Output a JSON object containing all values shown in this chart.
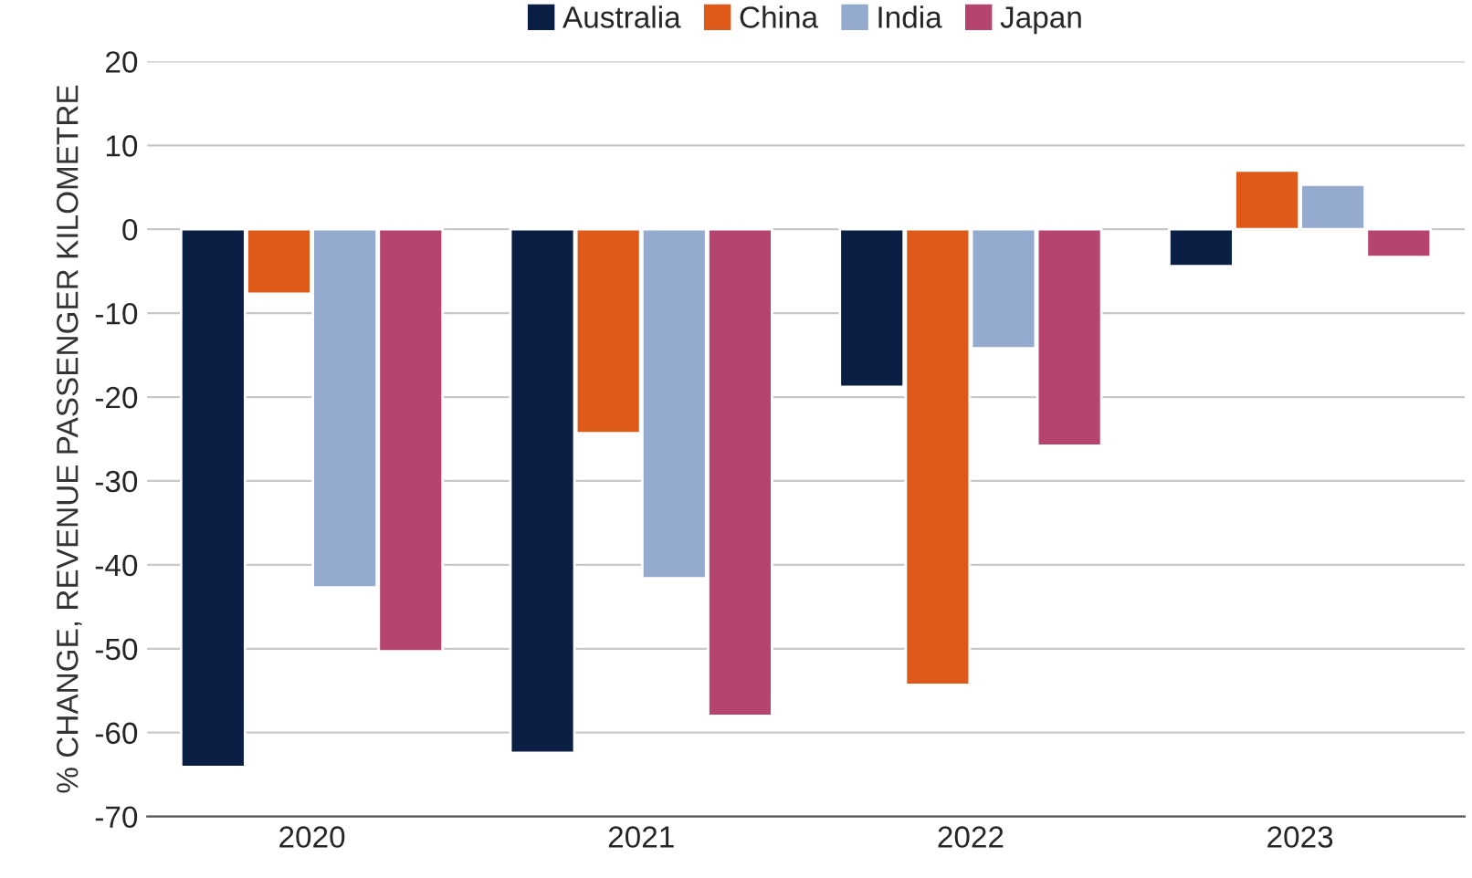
{
  "chart_data": {
    "type": "bar",
    "ylabel": "% CHANGE, REVENUE PASSENGER KILOMETRE",
    "categories": [
      "2020",
      "2021",
      "2022",
      "2023"
    ],
    "series": [
      {
        "name": "Australia",
        "color": "#0b1e43",
        "values": [
          -64.1,
          -62.4,
          -18.8,
          -4.4
        ]
      },
      {
        "name": "China",
        "color": "#df5a18",
        "values": [
          -7.7,
          -24.3,
          -54.3,
          7.0
        ]
      },
      {
        "name": "India",
        "color": "#95aacf",
        "values": [
          -42.7,
          -41.6,
          -14.2,
          5.3
        ]
      },
      {
        "name": "Japan",
        "color": "#b5446f",
        "values": [
          -50.3,
          -58.0,
          -25.8,
          -3.3
        ]
      }
    ],
    "ylim": [
      -70,
      20
    ],
    "yticks": [
      -70,
      -60,
      -50,
      -40,
      -30,
      -20,
      -10,
      0,
      10,
      20
    ],
    "grid": "y",
    "legend": "top"
  }
}
